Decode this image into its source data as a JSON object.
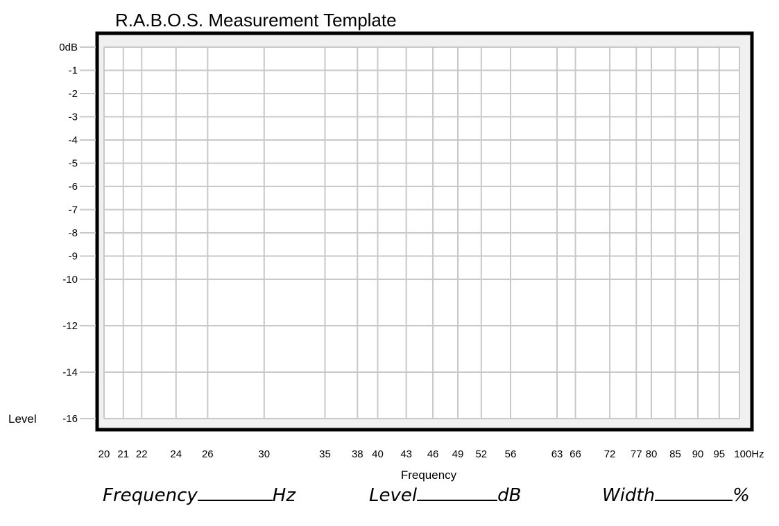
{
  "title": "R.A.B.O.S. Measurement Template",
  "chart_data": {
    "type": "line",
    "title": "R.A.B.O.S. Measurement Template",
    "xlabel": "Frequency",
    "ylabel": "Level",
    "x_ticks": [
      20,
      21,
      22,
      24,
      26,
      30,
      35,
      38,
      40,
      43,
      46,
      49,
      52,
      56,
      63,
      66,
      72,
      77,
      80,
      85,
      90,
      95,
      100
    ],
    "x_tick_labels": [
      "20",
      "21",
      "22",
      "24",
      "26",
      "30",
      "35",
      "38",
      "40",
      "43",
      "46",
      "49",
      "52",
      "56",
      "63",
      "66",
      "72",
      "77",
      "80",
      "85",
      "90",
      "95",
      "100Hz"
    ],
    "y_ticks": [
      0,
      -1,
      -2,
      -3,
      -4,
      -5,
      -6,
      -7,
      -8,
      -9,
      -10,
      -12,
      -14,
      -16
    ],
    "y_tick_labels": [
      "0dB",
      "-1",
      "-2",
      "-3",
      "-4",
      "-5",
      "-6",
      "-7",
      "-8",
      "-9",
      "-10",
      "-12",
      "-14",
      "-16"
    ],
    "xlim": [
      20,
      100
    ],
    "ylim": [
      -16,
      0
    ],
    "grid": true,
    "series": []
  },
  "footer": {
    "frequency_label": "Frequency",
    "frequency_unit": "Hz",
    "level_label": "Level",
    "level_unit": "dB",
    "width_label": "Width",
    "width_unit": "%"
  },
  "colors": {
    "grid": "#c8c8c8",
    "frame": "#000000",
    "plot_background": "#f0f0f0"
  }
}
